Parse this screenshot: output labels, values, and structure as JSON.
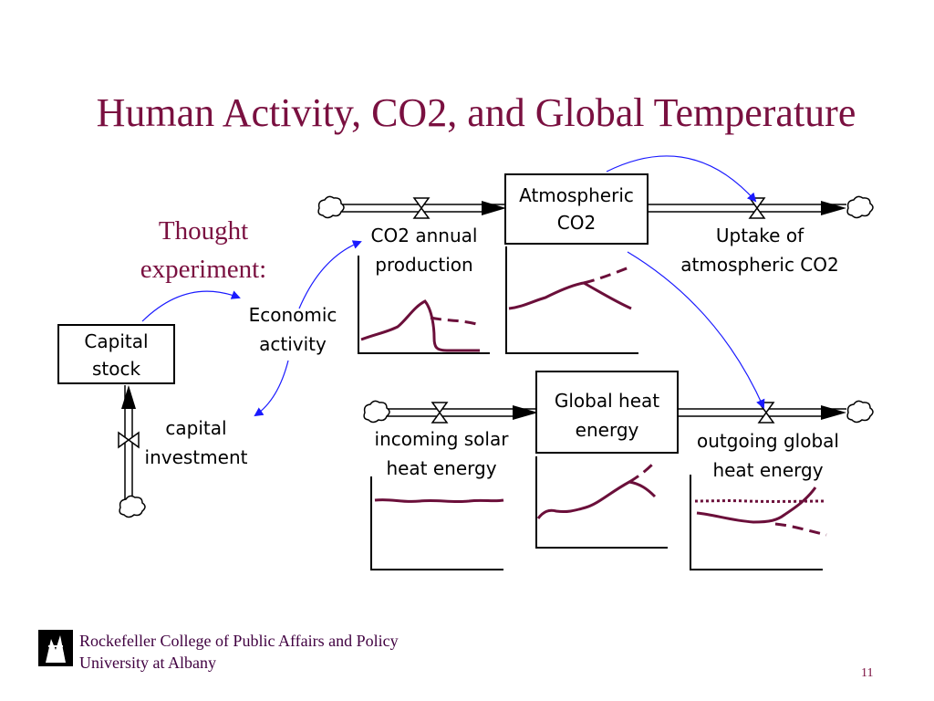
{
  "slide": {
    "title": "Human Activity, CO2, and Global Temperature",
    "thought_line1": "Thought",
    "thought_line2": "experiment:",
    "page_number": "11"
  },
  "diagram": {
    "capital_stock": [
      "Capital",
      "stock"
    ],
    "capital_investment": [
      "capital",
      "investment"
    ],
    "economic_activity": [
      "Economic",
      "activity"
    ],
    "co2_annual_production": [
      "CO2 annual",
      "production"
    ],
    "atmospheric_co2": [
      "Atmospheric",
      "CO2"
    ],
    "uptake_atmospheric_co2": [
      "Uptake of",
      "atmospheric CO2"
    ],
    "incoming_solar_heat": [
      "incoming solar",
      "heat energy"
    ],
    "global_heat_energy": [
      "Global heat",
      "energy"
    ],
    "outgoing_global_heat": [
      "outgoing global",
      "heat energy"
    ]
  },
  "footer": {
    "line1": "Rockefeller College of Public Affairs and Policy",
    "line2": "University at Albany"
  },
  "colors": {
    "title": "#7a1040",
    "curve": "#6b0f3a",
    "link_arrow": "#1a1aff",
    "footer_text": "#400040"
  }
}
